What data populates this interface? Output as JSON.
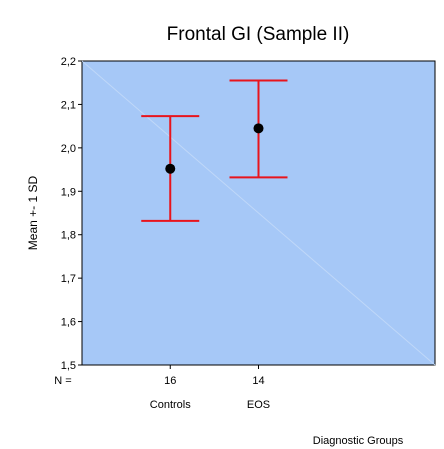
{
  "chart_data": {
    "type": "errorbar",
    "title": "Frontal GI (Sample II)",
    "ylabel": "Mean +- 1 SD",
    "xlabel": "Diagnostic Groups",
    "n_label": "N =",
    "ylim": [
      1.5,
      2.2
    ],
    "yticks": [
      "1,5",
      "1,6",
      "1,7",
      "1,8",
      "1,9",
      "2,0",
      "2,1",
      "2,2"
    ],
    "categories": [
      "Controls",
      "EOS"
    ],
    "n": [
      "16",
      "14"
    ],
    "mean": [
      1.952,
      2.045
    ],
    "lower": [
      1.832,
      1.932
    ],
    "upper": [
      2.073,
      2.155
    ],
    "grid": false,
    "colors": {
      "plot_background": "#a6c8f7",
      "error_bar": "#e8141c",
      "marker": "#000000",
      "diagonal": "#c0d8f8"
    }
  }
}
